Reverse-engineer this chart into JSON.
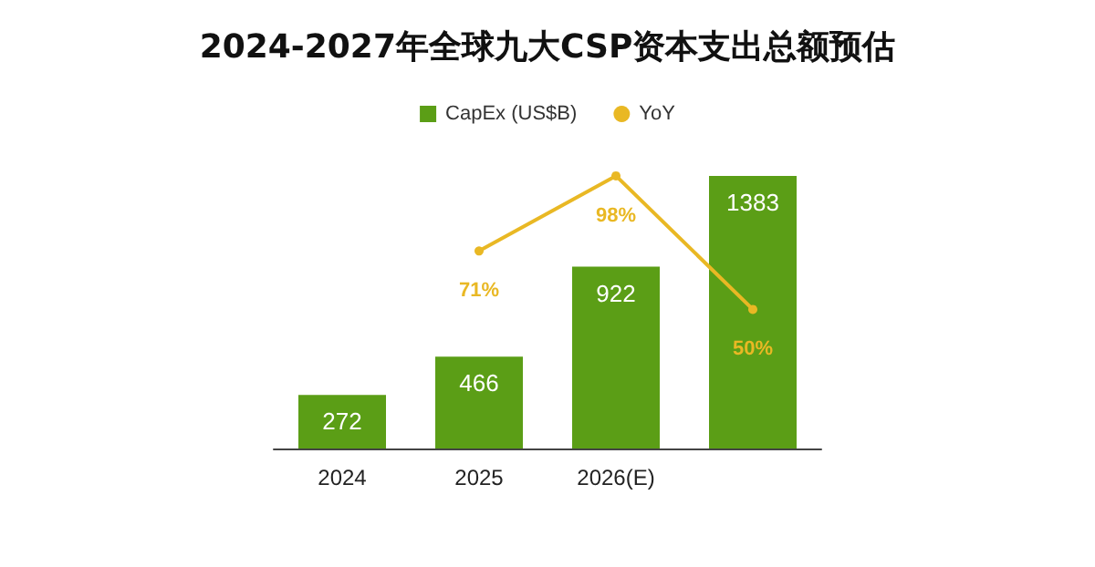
{
  "chart_data": {
    "type": "bar",
    "title": "2024-2027年全球九大CSP资本支出总额预估",
    "categories": [
      "2024",
      "2025",
      "2026(E)",
      null
    ],
    "series": [
      {
        "name": "CapEx (US$B)",
        "color": "#5b9e16",
        "values": [
          272,
          466,
          922,
          1383
        ],
        "value_labels": [
          "272",
          "466",
          "922",
          "1383"
        ]
      },
      {
        "name": "YoY",
        "type": "line",
        "axis": "y2",
        "color": "#e9b824",
        "values": [
          null,
          71,
          98,
          50
        ],
        "value_labels": [
          null,
          "71%",
          "98%",
          "50%"
        ],
        "marker": "circle"
      }
    ],
    "legend": "top",
    "grid": false,
    "tick_labels": "x"
  }
}
